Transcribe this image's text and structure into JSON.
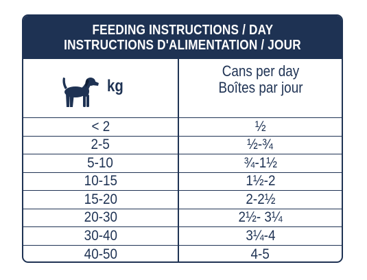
{
  "header": {
    "title_en": "FEEDING INSTRUCTIONS / DAY",
    "title_fr": "INSTRUCTIONS D'ALIMENTATION / JOUR"
  },
  "columns": {
    "weight_icon": "dog-icon",
    "weight_label": "kg",
    "cans_label_en": "Cans per day",
    "cans_label_fr": "Boîtes par jour"
  },
  "rows": [
    {
      "kg": "< 2",
      "cans": "½"
    },
    {
      "kg": "2-5",
      "cans": "½-¾"
    },
    {
      "kg": "5-10",
      "cans": "¾-1½"
    },
    {
      "kg": "10-15",
      "cans": "1½-2"
    },
    {
      "kg": "15-20",
      "cans": "2-2½"
    },
    {
      "kg": "20-30",
      "cans": "2½- 3¼"
    },
    {
      "kg": "30-40",
      "cans": "3¼-4"
    },
    {
      "kg": "40-50",
      "cans": "4-5"
    }
  ],
  "colors": {
    "navy": "#1e3253",
    "background": "#ffffff"
  }
}
